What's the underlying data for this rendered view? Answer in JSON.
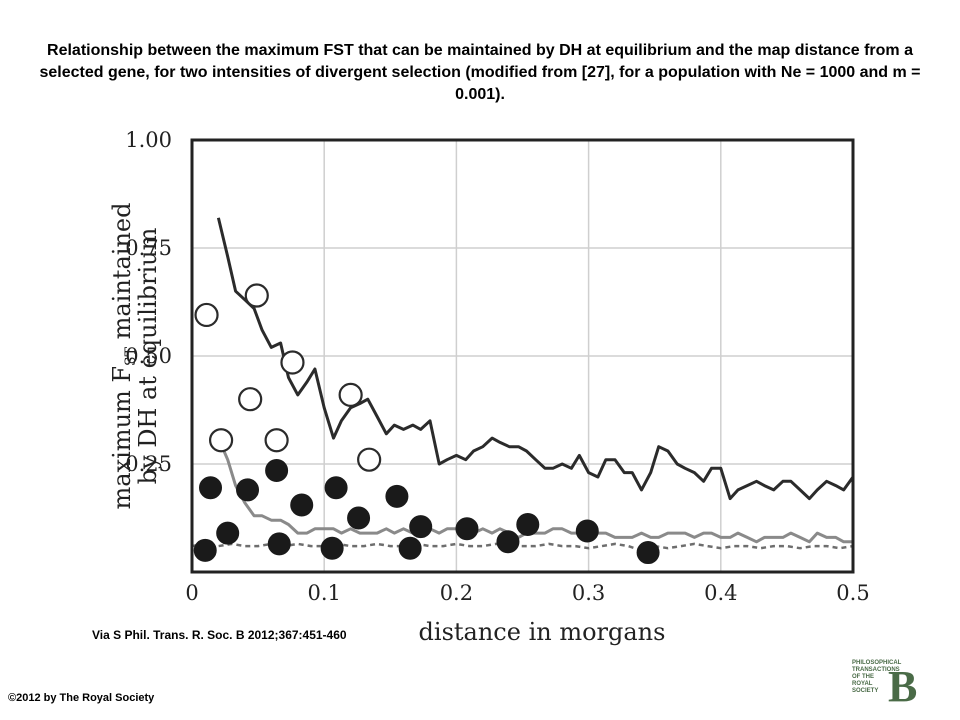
{
  "figure": {
    "title": "Relationship between the maximum FST that can be maintained by DH at equilibrium and the map distance from a selected gene, for two intensities of divergent selection (modified from [27], for a population with Ne = 1000 and m = 0.001).",
    "source": "Via S Phil. Trans. R. Soc. B 2012;367:451-460",
    "copyright": "©2012 by The Royal Society",
    "logo_text": "Philosophical Transactions of The Royal Society",
    "logo_mark": "B"
  },
  "chart_data": {
    "type": "line",
    "xlabel": "distance in morgans",
    "ylabel_line1": "maximum F",
    "ylabel_sub": "ST",
    "ylabel_line1_rest": " maintained",
    "ylabel_line2": "by DH at equilibrium",
    "xlim": [
      0,
      0.5
    ],
    "ylim": [
      0,
      1.0
    ],
    "x_ticks": [
      "0",
      "0.1",
      "0.2",
      "0.3",
      "0.4",
      "0.5"
    ],
    "y_ticks": [
      "0.25",
      "0.50",
      "0.75",
      "1.00"
    ],
    "grid": true,
    "series": [
      {
        "style": "solid-dark",
        "color": "#2b2b2b",
        "x": [
          0.02,
          0.027,
          0.033,
          0.04,
          0.047,
          0.053,
          0.06,
          0.067,
          0.073,
          0.08,
          0.087,
          0.093,
          0.1,
          0.107,
          0.113,
          0.12,
          0.127,
          0.133,
          0.14,
          0.147,
          0.153,
          0.16,
          0.167,
          0.173,
          0.18,
          0.187,
          0.193,
          0.2,
          0.207,
          0.213,
          0.22,
          0.227,
          0.233,
          0.24,
          0.247,
          0.253,
          0.26,
          0.267,
          0.273,
          0.28,
          0.287,
          0.293,
          0.3,
          0.307,
          0.313,
          0.32,
          0.327,
          0.333,
          0.34,
          0.347,
          0.353,
          0.36,
          0.367,
          0.373,
          0.38,
          0.387,
          0.393,
          0.4,
          0.407,
          0.413,
          0.42,
          0.427,
          0.433,
          0.44,
          0.447,
          0.453,
          0.46,
          0.467,
          0.473,
          0.48,
          0.487,
          0.493,
          0.5
        ],
        "values": [
          0.82,
          0.73,
          0.65,
          0.63,
          0.61,
          0.56,
          0.52,
          0.53,
          0.45,
          0.41,
          0.44,
          0.47,
          0.38,
          0.31,
          0.35,
          0.38,
          0.39,
          0.4,
          0.36,
          0.32,
          0.34,
          0.33,
          0.34,
          0.33,
          0.35,
          0.25,
          0.26,
          0.27,
          0.26,
          0.28,
          0.29,
          0.31,
          0.3,
          0.29,
          0.29,
          0.28,
          0.26,
          0.24,
          0.24,
          0.25,
          0.24,
          0.27,
          0.23,
          0.22,
          0.26,
          0.26,
          0.23,
          0.23,
          0.19,
          0.23,
          0.29,
          0.28,
          0.25,
          0.24,
          0.23,
          0.21,
          0.24,
          0.24,
          0.17,
          0.19,
          0.2,
          0.21,
          0.2,
          0.19,
          0.21,
          0.21,
          0.19,
          0.17,
          0.19,
          0.21,
          0.2,
          0.19,
          0.22
        ]
      },
      {
        "style": "solid-gray",
        "color": "#8a8a8a",
        "x": [
          0.02,
          0.027,
          0.033,
          0.04,
          0.047,
          0.053,
          0.06,
          0.067,
          0.073,
          0.08,
          0.087,
          0.093,
          0.1,
          0.107,
          0.113,
          0.12,
          0.127,
          0.133,
          0.14,
          0.147,
          0.153,
          0.16,
          0.167,
          0.173,
          0.18,
          0.187,
          0.193,
          0.2,
          0.207,
          0.213,
          0.22,
          0.227,
          0.233,
          0.24,
          0.247,
          0.253,
          0.26,
          0.267,
          0.273,
          0.28,
          0.287,
          0.293,
          0.3,
          0.307,
          0.313,
          0.32,
          0.327,
          0.333,
          0.34,
          0.347,
          0.353,
          0.36,
          0.367,
          0.373,
          0.38,
          0.387,
          0.393,
          0.4,
          0.407,
          0.413,
          0.42,
          0.427,
          0.433,
          0.44,
          0.447,
          0.453,
          0.46,
          0.467,
          0.473,
          0.48,
          0.487,
          0.493,
          0.5
        ],
        "values": [
          0.31,
          0.26,
          0.2,
          0.16,
          0.13,
          0.13,
          0.12,
          0.12,
          0.11,
          0.09,
          0.09,
          0.1,
          0.1,
          0.1,
          0.09,
          0.1,
          0.09,
          0.09,
          0.09,
          0.1,
          0.09,
          0.1,
          0.09,
          0.09,
          0.1,
          0.09,
          0.1,
          0.1,
          0.09,
          0.09,
          0.1,
          0.09,
          0.1,
          0.09,
          0.08,
          0.09,
          0.09,
          0.09,
          0.1,
          0.1,
          0.09,
          0.09,
          0.08,
          0.09,
          0.09,
          0.08,
          0.08,
          0.08,
          0.09,
          0.08,
          0.08,
          0.09,
          0.09,
          0.09,
          0.08,
          0.09,
          0.09,
          0.08,
          0.08,
          0.09,
          0.08,
          0.07,
          0.08,
          0.08,
          0.08,
          0.09,
          0.08,
          0.07,
          0.09,
          0.08,
          0.08,
          0.07,
          0.07
        ]
      },
      {
        "style": "dashed-gray",
        "color": "#6e6e6e",
        "x": [
          0.0,
          0.01,
          0.02,
          0.03,
          0.04,
          0.05,
          0.06,
          0.07,
          0.08,
          0.09,
          0.1,
          0.11,
          0.12,
          0.13,
          0.14,
          0.15,
          0.16,
          0.17,
          0.18,
          0.19,
          0.2,
          0.21,
          0.22,
          0.23,
          0.24,
          0.25,
          0.26,
          0.27,
          0.28,
          0.29,
          0.3,
          0.31,
          0.32,
          0.33,
          0.34,
          0.35,
          0.36,
          0.37,
          0.38,
          0.39,
          0.4,
          0.41,
          0.42,
          0.43,
          0.44,
          0.45,
          0.46,
          0.47,
          0.48,
          0.49,
          0.5
        ],
        "values": [
          0.06,
          0.065,
          0.06,
          0.065,
          0.06,
          0.06,
          0.065,
          0.06,
          0.065,
          0.06,
          0.06,
          0.065,
          0.06,
          0.06,
          0.065,
          0.06,
          0.06,
          0.065,
          0.06,
          0.06,
          0.065,
          0.06,
          0.06,
          0.065,
          0.06,
          0.06,
          0.06,
          0.065,
          0.06,
          0.06,
          0.055,
          0.06,
          0.065,
          0.06,
          0.05,
          0.06,
          0.055,
          0.06,
          0.065,
          0.06,
          0.055,
          0.06,
          0.06,
          0.055,
          0.06,
          0.06,
          0.055,
          0.06,
          0.06,
          0.055,
          0.06
        ]
      },
      {
        "style": "open-circles",
        "color": "#2b2b2b",
        "x": [
          0.011,
          0.022,
          0.044,
          0.049,
          0.064,
          0.076,
          0.12,
          0.134
        ],
        "values": [
          0.595,
          0.305,
          0.4,
          0.64,
          0.305,
          0.485,
          0.41,
          0.26
        ]
      },
      {
        "style": "filled-circles",
        "color": "#1a1a1a",
        "x": [
          0.01,
          0.014,
          0.027,
          0.042,
          0.064,
          0.066,
          0.083,
          0.106,
          0.109,
          0.126,
          0.155,
          0.165,
          0.173,
          0.208,
          0.239,
          0.254,
          0.299,
          0.345
        ],
        "values": [
          0.05,
          0.195,
          0.09,
          0.19,
          0.235,
          0.065,
          0.155,
          0.055,
          0.195,
          0.125,
          0.175,
          0.055,
          0.105,
          0.1,
          0.07,
          0.11,
          0.095,
          0.045
        ]
      }
    ]
  }
}
